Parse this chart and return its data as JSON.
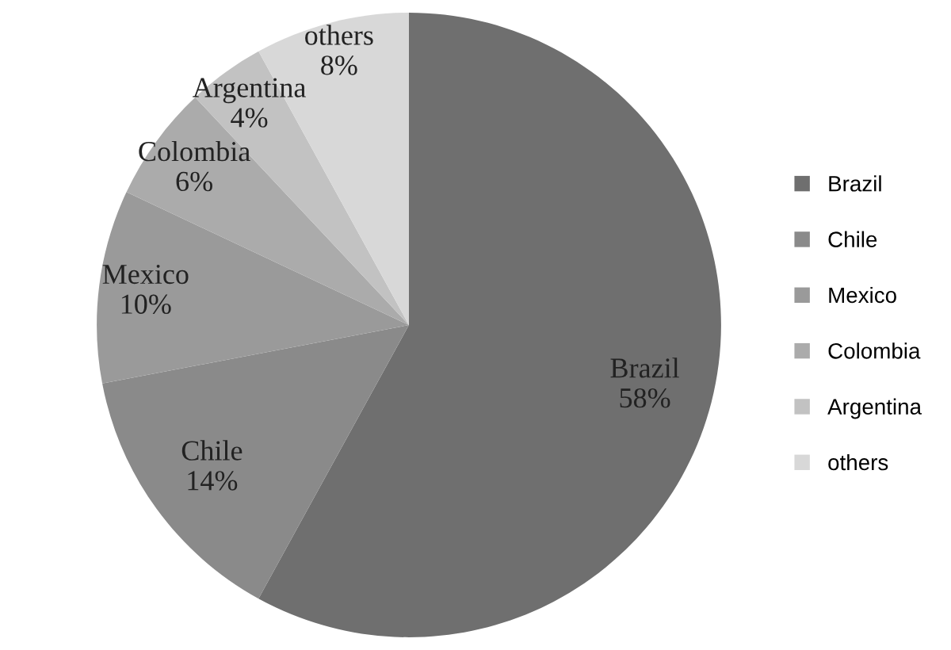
{
  "chart_data": {
    "type": "pie",
    "categories": [
      "Brazil",
      "Chile",
      "Mexico",
      "Colombia",
      "Argentina",
      "others"
    ],
    "values": [
      58,
      14,
      10,
      6,
      4,
      8
    ],
    "colors": [
      "#6f6f6f",
      "#8a8a8a",
      "#9a9a9a",
      "#ababab",
      "#c2c2c2",
      "#d8d8d8"
    ],
    "value_labels": [
      "58%",
      "14%",
      "10%",
      "6%",
      "4%",
      "8%"
    ],
    "legend": "right"
  }
}
